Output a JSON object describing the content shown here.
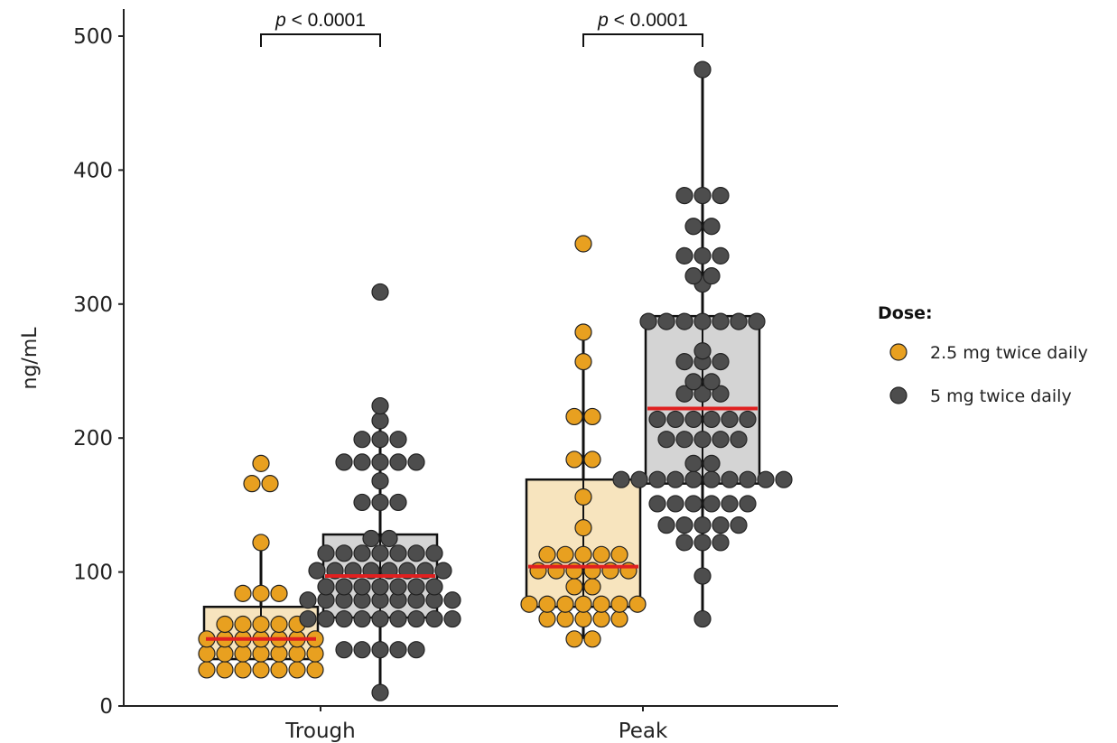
{
  "chart_data": {
    "type": "box",
    "ylabel": "ng/mL",
    "ylim": [
      0,
      520
    ],
    "yticks": [
      0,
      100,
      200,
      300,
      400,
      500
    ],
    "categories": [
      "Trough",
      "Peak"
    ],
    "legend": {
      "title": "Dose:",
      "position": "right",
      "entries": [
        {
          "label": "2.5 mg twice daily",
          "color": "#E8A020"
        },
        {
          "label": "5 mg twice daily",
          "color": "#4D4D4D"
        }
      ]
    },
    "annotations": [
      {
        "category": "Trough",
        "text": "< 0.0001",
        "prefix": "p"
      },
      {
        "category": "Peak",
        "text": "< 0.0001",
        "prefix": "p"
      }
    ],
    "colors": {
      "low_fill": "#F7E4BE",
      "high_fill": "#D4D4D4",
      "low_point": "#E8A020",
      "high_point": "#4D4D4D",
      "median": "#E02020"
    },
    "series": [
      {
        "name": "2.5 mg twice daily",
        "groups": [
          {
            "category": "Trough",
            "box": {
              "q1": 35,
              "median": 50,
              "q3": 74,
              "lower": 27,
              "upper": 122
            },
            "points": [
              27,
              27,
              27,
              27,
              27,
              27,
              27,
              39,
              39,
              39,
              39,
              39,
              39,
              39,
              50,
              50,
              50,
              50,
              50,
              50,
              50,
              61,
              61,
              61,
              61,
              61,
              84,
              84,
              84,
              122,
              166,
              166,
              181
            ]
          },
          {
            "category": "Peak",
            "box": {
              "q1": 74,
              "median": 104,
              "q3": 169,
              "lower": 50,
              "upper": 279
            },
            "points": [
              50,
              50,
              65,
              65,
              65,
              65,
              65,
              76,
              76,
              76,
              76,
              76,
              76,
              76,
              89,
              89,
              101,
              101,
              101,
              101,
              101,
              101,
              113,
              113,
              113,
              113,
              113,
              133,
              156,
              184,
              184,
              216,
              216,
              257,
              279,
              345
            ]
          }
        ]
      },
      {
        "name": "5 mg twice daily",
        "groups": [
          {
            "category": "Trough",
            "box": {
              "q1": 66,
              "median": 97,
              "q3": 128,
              "lower": 10,
              "upper": 224
            },
            "points": [
              10,
              42,
              42,
              42,
              42,
              42,
              65,
              65,
              65,
              65,
              65,
              65,
              65,
              65,
              65,
              79,
              79,
              79,
              79,
              79,
              79,
              79,
              79,
              79,
              89,
              89,
              89,
              89,
              89,
              89,
              89,
              101,
              101,
              101,
              101,
              101,
              101,
              101,
              101,
              114,
              114,
              114,
              114,
              114,
              114,
              114,
              125,
              125,
              152,
              152,
              152,
              168,
              182,
              182,
              182,
              182,
              182,
              199,
              199,
              199,
              213,
              224,
              309
            ]
          },
          {
            "category": "Peak",
            "box": {
              "q1": 166,
              "median": 222,
              "q3": 291,
              "lower": 65,
              "upper": 475
            },
            "points": [
              65,
              97,
              122,
              122,
              122,
              135,
              135,
              135,
              135,
              135,
              151,
              151,
              151,
              151,
              151,
              151,
              169,
              169,
              169,
              169,
              169,
              169,
              169,
              169,
              169,
              169,
              181,
              181,
              199,
              199,
              199,
              199,
              199,
              214,
              214,
              214,
              214,
              214,
              214,
              233,
              233,
              233,
              242,
              242,
              257,
              257,
              257,
              265,
              287,
              287,
              287,
              287,
              287,
              287,
              287,
              315,
              321,
              321,
              336,
              336,
              336,
              358,
              358,
              381,
              381,
              381,
              475
            ]
          }
        ]
      }
    ]
  }
}
